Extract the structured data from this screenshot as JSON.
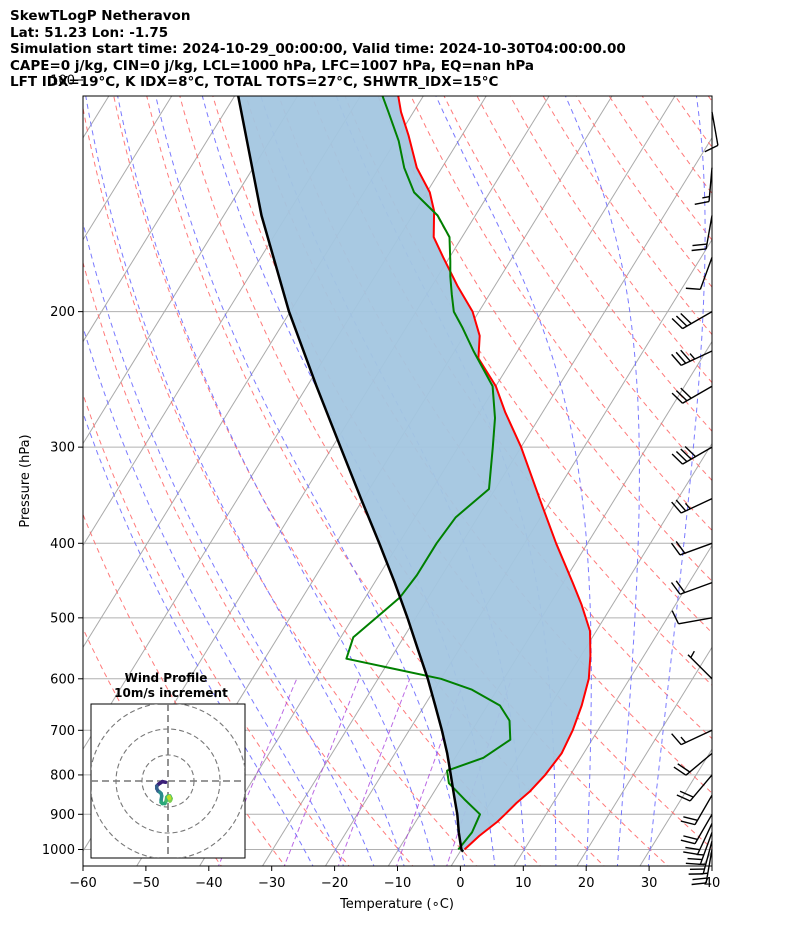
{
  "header": {
    "title": "SkewTLogP Netheravon",
    "location": "Lat: 51.23   Lon: -1.75",
    "times": "Simulation start time: 2024-10-29_00:00:00, Valid time: 2024-10-30T04:00:00.00",
    "indices1": "CAPE=0 j/kg, CIN=0 j/kg, LCL=1000 hPa, LFC=1007 hPa, EQ=nan hPa",
    "indices2": "LFT IDX=19°C, K IDX=8°C, TOTAL TOTS=27°C, SHWTR_IDX=15°C"
  },
  "colors": {
    "temperature": "#ff0000",
    "dewpoint": "#008000",
    "parcel": "#000000",
    "cape_fill": "#a3c6e0",
    "dry_adiabat": "#ff6b6b",
    "moist_adiabat": "#6b6bff",
    "mixing_ratio": "#aa44dd",
    "isotherm": "#aaaaaa"
  },
  "chart_data": {
    "type": "line",
    "ylabel": "Pressure (hPa)",
    "xlabel": "Temperature (∘C)",
    "xlim": [
      -60,
      40
    ],
    "ylim": [
      1050,
      100
    ],
    "y_scale": "log",
    "x_ticks": [
      "−60",
      "−50",
      "−40",
      "−30",
      "−20",
      "−10",
      "0",
      "10",
      "20",
      "30",
      "40"
    ],
    "y_ticks": [
      "1000",
      "900",
      "800",
      "700",
      "600",
      "500",
      "400",
      "300",
      "200",
      "100"
    ],
    "series": [
      {
        "name": "Temperature",
        "points": [
          [
            1000,
            10.5
          ],
          [
            960,
            11.5
          ],
          [
            920,
            13.0
          ],
          [
            900,
            13.5
          ],
          [
            870,
            14.2
          ],
          [
            840,
            15.2
          ],
          [
            800,
            16.0
          ],
          [
            750,
            16.5
          ],
          [
            700,
            16.0
          ],
          [
            650,
            15.0
          ],
          [
            600,
            13.5
          ],
          [
            560,
            11.5
          ],
          [
            520,
            9.0
          ],
          [
            480,
            5.0
          ],
          [
            450,
            1.5
          ],
          [
            400,
            -5.0
          ],
          [
            350,
            -12.0
          ],
          [
            300,
            -20.0
          ],
          [
            270,
            -26.0
          ],
          [
            250,
            -30.0
          ],
          [
            230,
            -35.5
          ],
          [
            215,
            -37.5
          ],
          [
            200,
            -41.0
          ],
          [
            185,
            -46.0
          ],
          [
            170,
            -51.0
          ],
          [
            160,
            -54.5
          ],
          [
            148,
            -57.0
          ],
          [
            140,
            -59.5
          ],
          [
            130,
            -64.0
          ],
          [
            118,
            -68.5
          ],
          [
            110,
            -72.0
          ],
          [
            100,
            -76.0
          ]
        ]
      },
      {
        "name": "Dewpoint",
        "points": [
          [
            1000,
            9.5
          ],
          [
            950,
            10.0
          ],
          [
            900,
            9.5
          ],
          [
            860,
            5.5
          ],
          [
            820,
            1.5
          ],
          [
            790,
            0.0
          ],
          [
            760,
            4.5
          ],
          [
            720,
            7.0
          ],
          [
            680,
            5.0
          ],
          [
            650,
            2.0
          ],
          [
            620,
            -4.0
          ],
          [
            600,
            -10.0
          ],
          [
            565,
            -27.0
          ],
          [
            530,
            -28.0
          ],
          [
            495,
            -26.0
          ],
          [
            470,
            -24.5
          ],
          [
            440,
            -24.0
          ],
          [
            400,
            -24.0
          ],
          [
            370,
            -23.5
          ],
          [
            340,
            -21.0
          ],
          [
            300,
            -24.5
          ],
          [
            275,
            -27.0
          ],
          [
            250,
            -30.5
          ],
          [
            225,
            -37.0
          ],
          [
            210,
            -41.0
          ],
          [
            200,
            -44.0
          ],
          [
            190,
            -46.0
          ],
          [
            180,
            -48.0
          ],
          [
            172,
            -49.5
          ],
          [
            160,
            -52.0
          ],
          [
            150,
            -56.0
          ],
          [
            140,
            -62.0
          ],
          [
            130,
            -66.0
          ],
          [
            120,
            -69.5
          ],
          [
            110,
            -74.0
          ],
          [
            100,
            -79.0
          ]
        ]
      },
      {
        "name": "Parcel",
        "points": [
          [
            1007,
            10.5
          ],
          [
            1000,
            10.0
          ],
          [
            950,
            7.9
          ],
          [
            900,
            5.9
          ],
          [
            850,
            3.5
          ],
          [
            800,
            1.0
          ],
          [
            750,
            -1.7
          ],
          [
            700,
            -4.8
          ],
          [
            650,
            -8.3
          ],
          [
            600,
            -12.1
          ],
          [
            550,
            -16.5
          ],
          [
            500,
            -21.3
          ],
          [
            450,
            -26.8
          ],
          [
            400,
            -33.1
          ],
          [
            350,
            -40.4
          ],
          [
            300,
            -48.7
          ],
          [
            250,
            -58.5
          ],
          [
            200,
            -70.2
          ],
          [
            150,
            -84.0
          ],
          [
            100,
            -101.5
          ]
        ]
      }
    ],
    "wind_barbs": [
      {
        "p": 1000,
        "dir": 190,
        "spd": 25
      },
      {
        "p": 975,
        "dir": 195,
        "spd": 25
      },
      {
        "p": 950,
        "dir": 200,
        "spd": 25
      },
      {
        "p": 925,
        "dir": 205,
        "spd": 20
      },
      {
        "p": 900,
        "dir": 210,
        "spd": 20
      },
      {
        "p": 850,
        "dir": 210,
        "spd": 20
      },
      {
        "p": 800,
        "dir": 220,
        "spd": 20
      },
      {
        "p": 750,
        "dir": 230,
        "spd": 20
      },
      {
        "p": 700,
        "dir": 245,
        "spd": 15
      },
      {
        "p": 600,
        "dir": 315,
        "spd": 5
      },
      {
        "p": 500,
        "dir": 260,
        "spd": 10
      },
      {
        "p": 450,
        "dir": 250,
        "spd": 20
      },
      {
        "p": 400,
        "dir": 250,
        "spd": 20
      },
      {
        "p": 350,
        "dir": 245,
        "spd": 25
      },
      {
        "p": 300,
        "dir": 240,
        "spd": 40
      },
      {
        "p": 250,
        "dir": 240,
        "spd": 30
      },
      {
        "p": 225,
        "dir": 245,
        "spd": 35
      },
      {
        "p": 200,
        "dir": 240,
        "spd": 30
      },
      {
        "p": 170,
        "dir": 200,
        "spd": 10
      },
      {
        "p": 150,
        "dir": 190,
        "spd": 20
      },
      {
        "p": 130,
        "dir": 185,
        "spd": 15
      },
      {
        "p": 110,
        "dir": 170,
        "spd": 10
      }
    ],
    "wind_profile": {
      "title": "Wind Profile",
      "subtitle": "10m/s increment",
      "rings_mps": [
        10,
        20,
        30
      ],
      "hodograph_uv": [
        [
          -2,
          -1
        ],
        [
          -4.5,
          -0.5
        ],
        [
          -6,
          -1.5
        ],
        [
          -7.5,
          -2.5
        ],
        [
          -9,
          -4
        ],
        [
          -9,
          -6
        ],
        [
          -8,
          -8
        ],
        [
          -6.5,
          -9
        ],
        [
          -5.5,
          -10
        ],
        [
          -5,
          -12
        ],
        [
          -5.5,
          -15
        ],
        [
          -5.5,
          -17
        ],
        [
          -4.5,
          -18
        ],
        [
          -2.5,
          -18
        ],
        [
          -1.5,
          -16
        ],
        [
          -1,
          -13
        ],
        [
          0,
          -12
        ],
        [
          1.5,
          -12
        ],
        [
          2.5,
          -14
        ],
        [
          2,
          -15.5
        ],
        [
          1.5,
          -16
        ],
        [
          1,
          -14
        ],
        [
          0.5,
          -13
        ],
        [
          1,
          -12.5
        ]
      ]
    }
  }
}
